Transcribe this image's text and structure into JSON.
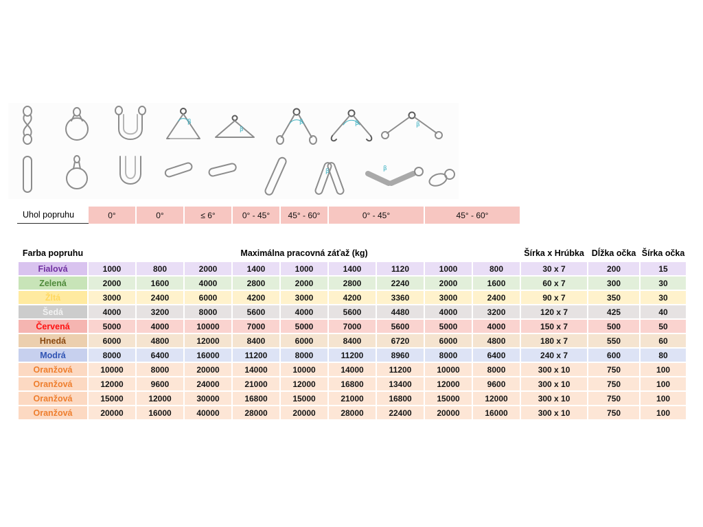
{
  "diagrams": {
    "beta": "β"
  },
  "angle_section": {
    "label": "Uhol popruhu",
    "cell_bg": "#f7c6c1",
    "cells": [
      {
        "text": "0°",
        "wide": false
      },
      {
        "text": "0°",
        "wide": false
      },
      {
        "text": "≤ 6°",
        "wide": false
      },
      {
        "text": "0° - 45°",
        "wide": false
      },
      {
        "text": "45° - 60°",
        "wide": false
      },
      {
        "text": "0° - 45°",
        "wide": true
      },
      {
        "text": "45° - 60°",
        "wide": true
      }
    ]
  },
  "table": {
    "headers": {
      "color": "Farba popruhu",
      "load": "Maximálna pracovná záťaž (kg)",
      "dims": "Šírka x Hrúbka",
      "eye_length": "Dĺžka očka",
      "eye_width": "Šírka očka"
    },
    "rows": [
      {
        "name": "Fialová",
        "text_color": "#7030a0",
        "name_bg": "#d9c3ef",
        "bg": "#e9def6",
        "values": [
          "1000",
          "800",
          "2000",
          "1400",
          "1000",
          "1400",
          "1120",
          "1000",
          "800"
        ],
        "dims": "30 x 7",
        "eye_length": "200",
        "eye_width": "15"
      },
      {
        "name": "Zelená",
        "text_color": "#4e8a3a",
        "name_bg": "#c8e4b8",
        "bg": "#e2efda",
        "values": [
          "2000",
          "1600",
          "4000",
          "2800",
          "2000",
          "2800",
          "2240",
          "2000",
          "1600"
        ],
        "dims": "60 x 7",
        "eye_length": "300",
        "eye_width": "30"
      },
      {
        "name": "Žltá",
        "text_color": "#ffd75e",
        "name_bg": "#ffeaa0",
        "bg": "#fff2cc",
        "values": [
          "3000",
          "2400",
          "6000",
          "4200",
          "3000",
          "4200",
          "3360",
          "3000",
          "2400"
        ],
        "dims": "90 x 7",
        "eye_length": "350",
        "eye_width": "30"
      },
      {
        "name": "Šedá",
        "text_color": "#f2f2f2",
        "name_bg": "#cccccc",
        "bg": "#e6e2e2",
        "values": [
          "4000",
          "3200",
          "8000",
          "5600",
          "4000",
          "5600",
          "4480",
          "4000",
          "3200"
        ],
        "dims": "120 x 7",
        "eye_length": "425",
        "eye_width": "40"
      },
      {
        "name": "Červená",
        "text_color": "#ff1111",
        "name_bg": "#f5b5b1",
        "bg": "#fad3cf",
        "values": [
          "5000",
          "4000",
          "10000",
          "7000",
          "5000",
          "7000",
          "5600",
          "5000",
          "4000"
        ],
        "dims": "150 x 7",
        "eye_length": "500",
        "eye_width": "50"
      },
      {
        "name": "Hnedá",
        "text_color": "#8a4a12",
        "name_bg": "#eccfae",
        "bg": "#f5e4d0",
        "values": [
          "6000",
          "4800",
          "12000",
          "8400",
          "6000",
          "8400",
          "6720",
          "6000",
          "4800"
        ],
        "dims": "180 x 7",
        "eye_length": "550",
        "eye_width": "60"
      },
      {
        "name": "Modrá",
        "text_color": "#3054b4",
        "name_bg": "#c7d0ee",
        "bg": "#dde3f5",
        "values": [
          "8000",
          "6400",
          "16000",
          "11200",
          "8000",
          "11200",
          "8960",
          "8000",
          "6400"
        ],
        "dims": "240 x 7",
        "eye_length": "600",
        "eye_width": "80"
      },
      {
        "name": "Oranžová",
        "text_color": "#ee7e2e",
        "name_bg": "#fcd9c2",
        "bg": "#fde6d6",
        "values": [
          "10000",
          "8000",
          "20000",
          "14000",
          "10000",
          "14000",
          "11200",
          "10000",
          "8000"
        ],
        "dims": "300 x 10",
        "eye_length": "750",
        "eye_width": "100"
      },
      {
        "name": "Oranžová",
        "text_color": "#ee7e2e",
        "name_bg": "#fcd9c2",
        "bg": "#fde6d6",
        "values": [
          "12000",
          "9600",
          "24000",
          "21000",
          "12000",
          "16800",
          "13400",
          "12000",
          "9600"
        ],
        "dims": "300 x 10",
        "eye_length": "750",
        "eye_width": "100"
      },
      {
        "name": "Oranžová",
        "text_color": "#ee7e2e",
        "name_bg": "#fcd9c2",
        "bg": "#fde6d6",
        "values": [
          "15000",
          "12000",
          "30000",
          "16800",
          "15000",
          "21000",
          "16800",
          "15000",
          "12000"
        ],
        "dims": "300 x 10",
        "eye_length": "750",
        "eye_width": "100"
      },
      {
        "name": "Oranžová",
        "text_color": "#ee7e2e",
        "name_bg": "#fcd9c2",
        "bg": "#fde6d6",
        "values": [
          "20000",
          "16000",
          "40000",
          "28000",
          "20000",
          "28000",
          "22400",
          "20000",
          "16000"
        ],
        "dims": "300 x 10",
        "eye_length": "750",
        "eye_width": "100"
      }
    ]
  }
}
